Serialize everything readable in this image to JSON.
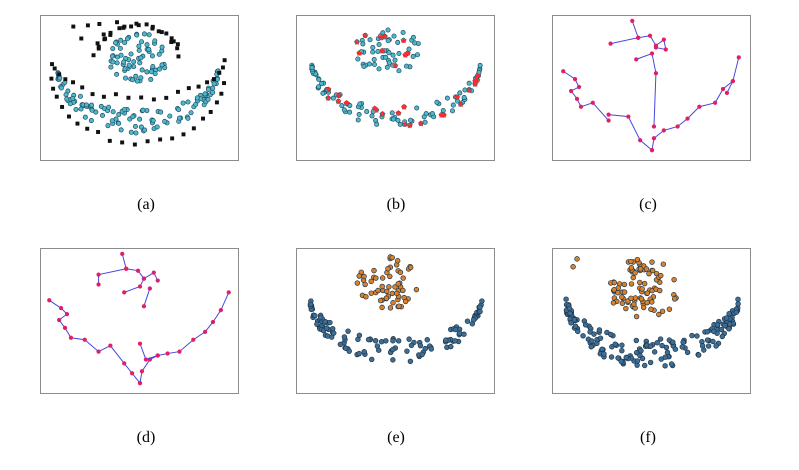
{
  "figure": {
    "panels": [
      {
        "id": "a",
        "caption": "(a)",
        "content": "points with boundary points marked as black squares"
      },
      {
        "id": "b",
        "caption": "(b)",
        "content": "points with red star markers on selected points"
      },
      {
        "id": "c",
        "caption": "(c)",
        "content": "minimum spanning path over representative points (single tree)"
      },
      {
        "id": "d",
        "caption": "(d)",
        "content": "spanning structure split into two trees"
      },
      {
        "id": "e",
        "caption": "(e)",
        "content": "final clustering result: orange disc cluster and blue moon cluster"
      },
      {
        "id": "f",
        "caption": "(f)",
        "content": "clustering result of a second method"
      }
    ],
    "colors": {
      "cyan_point": "#4fb8c9",
      "point_edge": "#1e4d66",
      "square": "#111111",
      "star": "#ff2a2a",
      "edge": "#4646e0",
      "vertex": "#e01f6a",
      "cluster_blue": "#3d6f96",
      "cluster_orange": "#d9822b",
      "cluster_edge": "#1e3347"
    }
  }
}
